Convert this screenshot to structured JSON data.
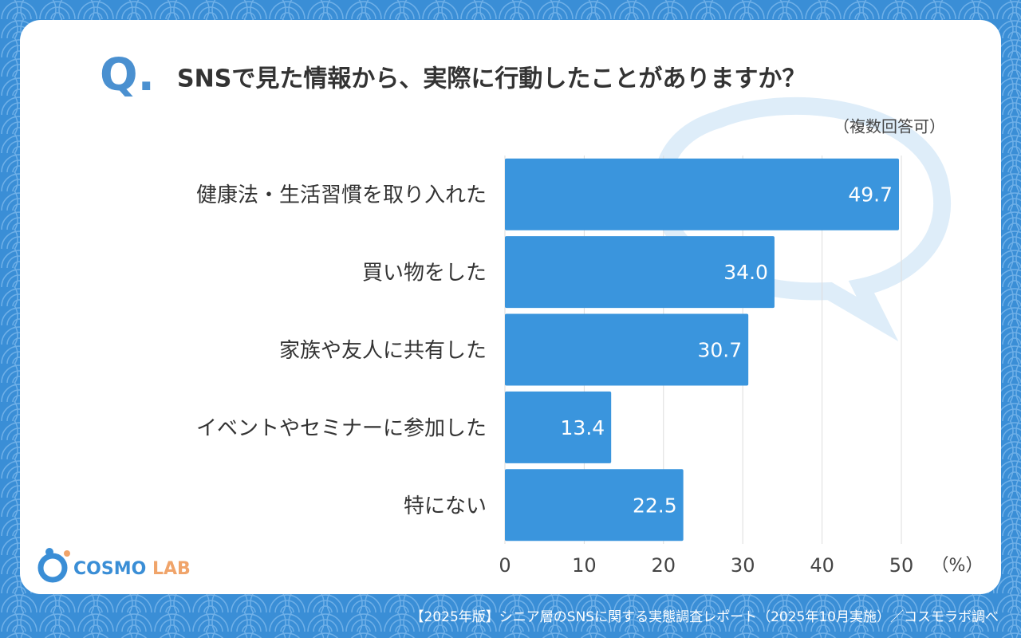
{
  "chart_data": {
    "type": "hbar",
    "question_marker": "Q.",
    "title": "SNSで見た情報から、実際に行動したことがありますか？",
    "subtitle": "（複数回答可）",
    "categories": [
      "健康法・生活習慣を取り入れた",
      "買い物をした",
      "家族や友人に共有した",
      "イベントやセミナーに参加した",
      "特にない"
    ],
    "values": [
      49.7,
      34,
      30.7,
      13.4,
      22.5
    ],
    "value_labels": [
      "49.7",
      "34.0",
      "30.7",
      "13.4",
      "22.5"
    ],
    "color": "#3a95dd",
    "xlim": [
      0,
      50
    ],
    "xticks": [
      0,
      10,
      20,
      30,
      40,
      50
    ],
    "x_unit": "（%）",
    "grid": true,
    "logo": [
      "COSMO",
      "LAB"
    ],
    "source": "【2025年版】シニア層のSNSに関する実態調査レポート（2025年10月実施）／コスモラボ調べ"
  }
}
